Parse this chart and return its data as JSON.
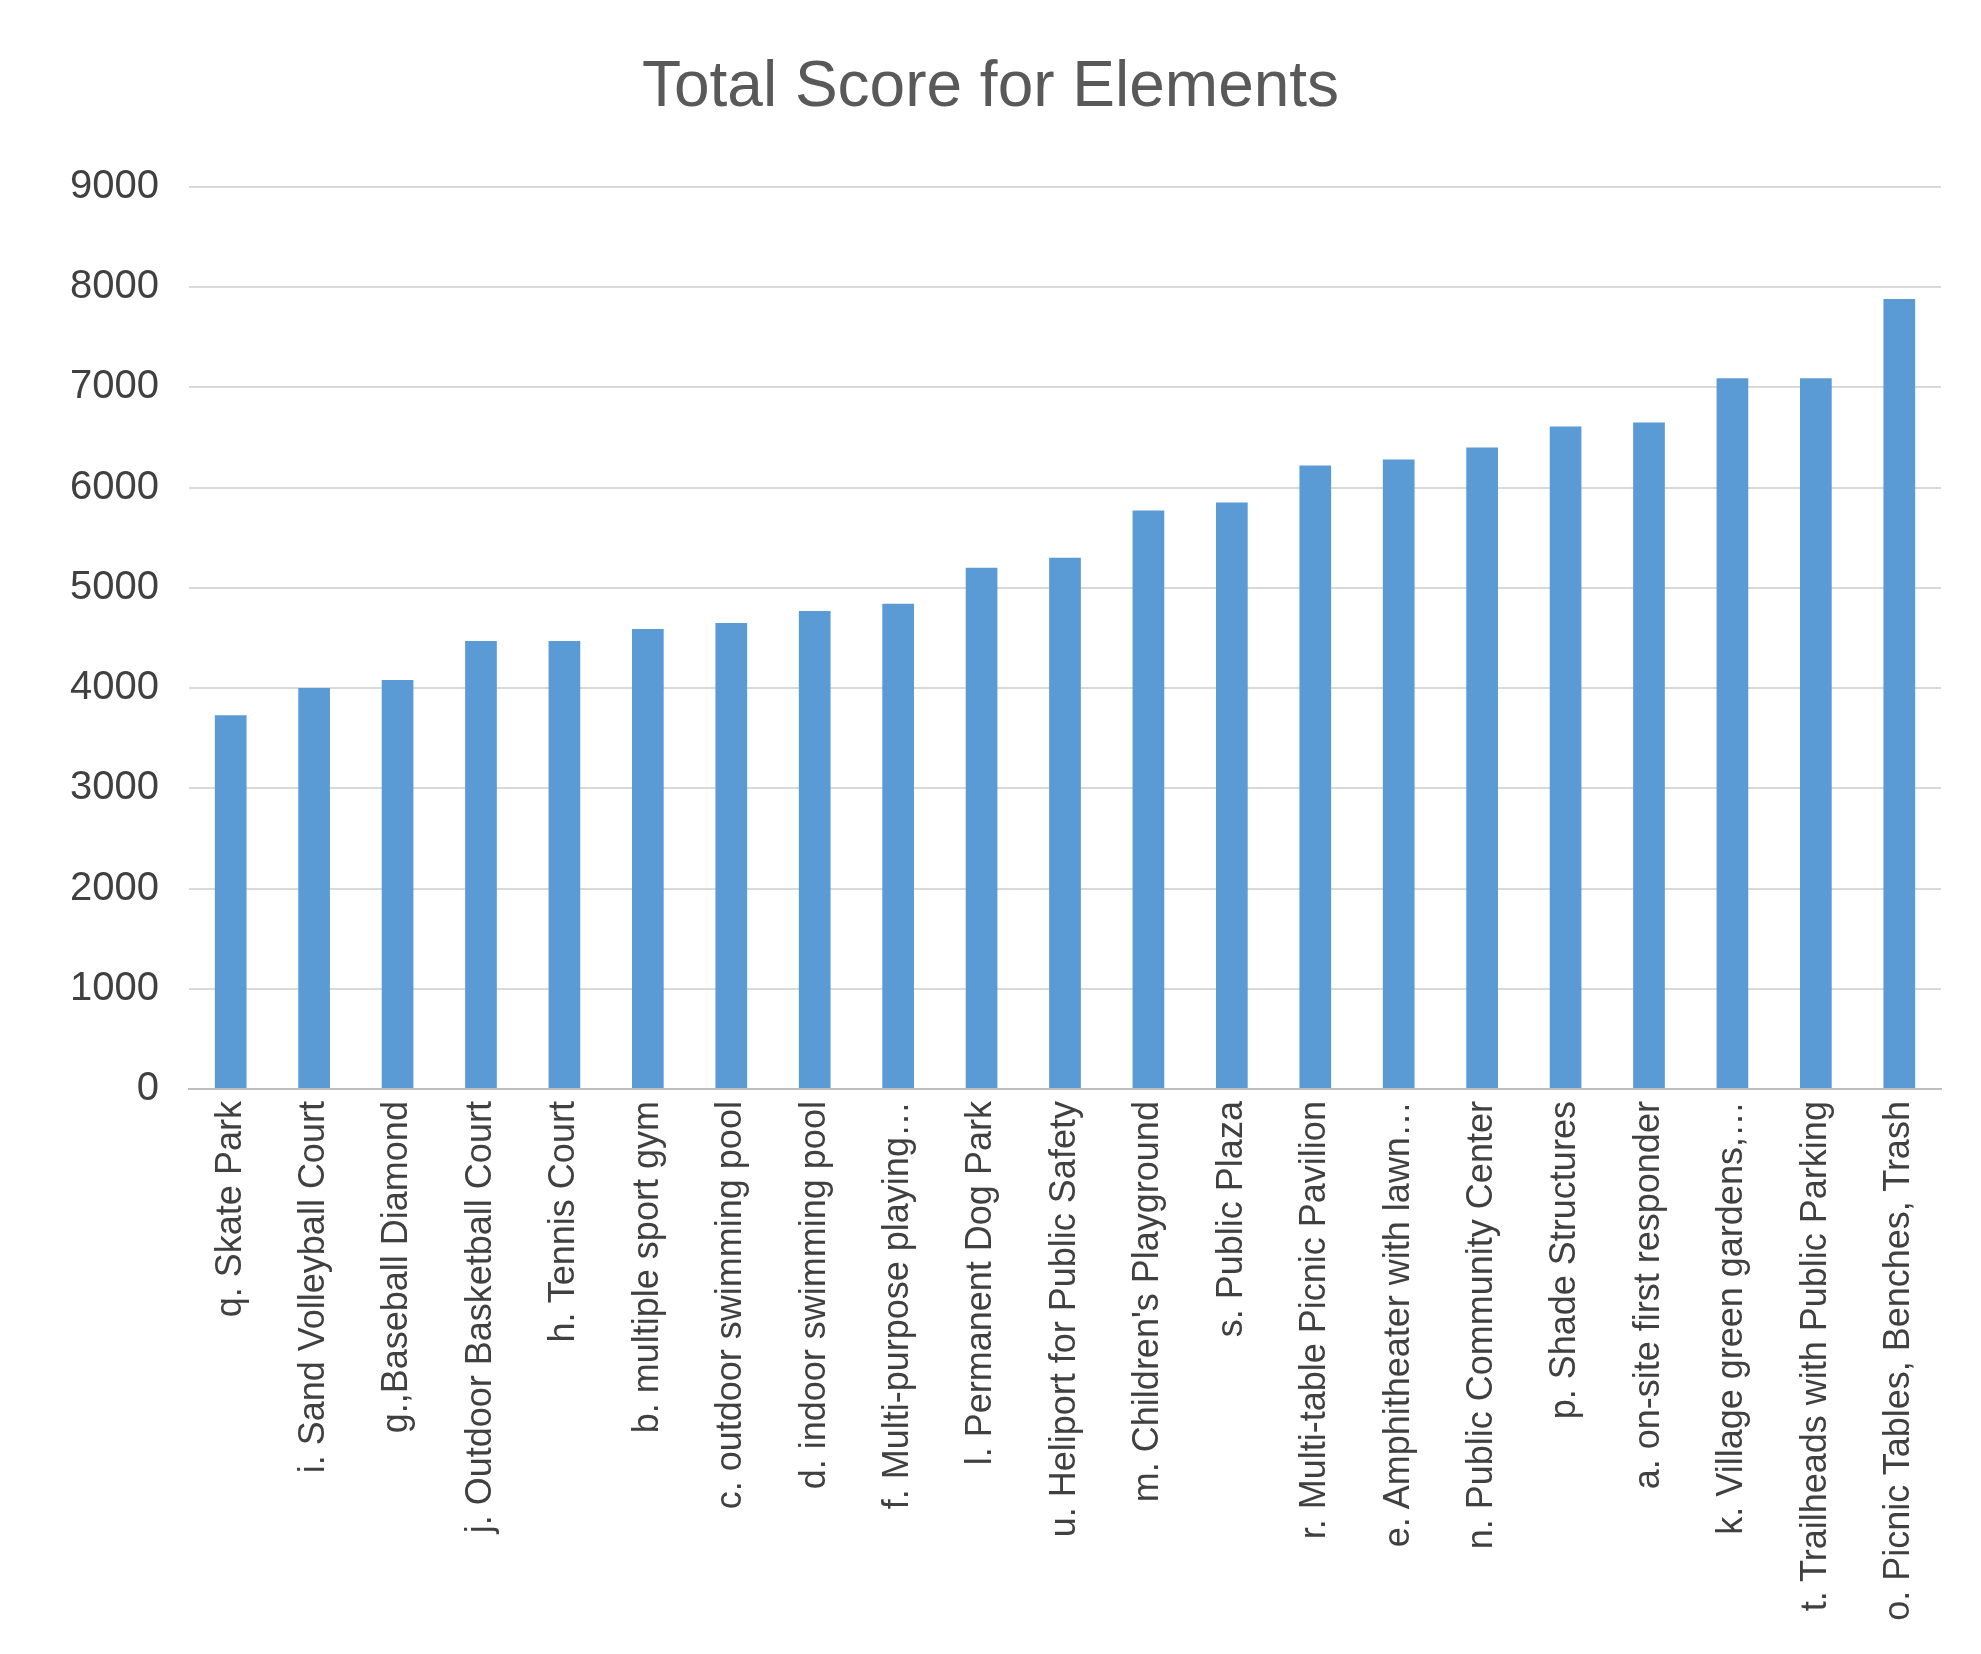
{
  "chart_data": {
    "type": "bar",
    "title": "Total Score for Elements",
    "categories": [
      "q. Skate Park",
      "i. Sand Volleyball Court",
      "g.,Baseball Diamond",
      "j. Outdoor Basketball Court",
      "h. Tennis Court",
      "b. multiple sport gym",
      "c. outdoor swimming pool",
      "d. indoor swimming pool",
      "f. Multi-purpose playing…",
      "l. Permanent Dog Park",
      "u. Heliport for Public Safety",
      "m. Children's Playground",
      "s. Public Plaza",
      "r. Multi-table Picnic Pavilion",
      "e. Amphitheater with lawn…",
      "n. Public Community Center",
      "p. Shade Structures",
      "a. on-site first responder",
      "k. Village green gardens,…",
      "t. Trailheads with Public Parking",
      "o. Picnic Tables, Benches, Trash"
    ],
    "values": [
      3730,
      4000,
      4080,
      4470,
      4470,
      4590,
      4650,
      4770,
      4840,
      5200,
      5300,
      5770,
      5850,
      6220,
      6280,
      6400,
      6610,
      6650,
      7090,
      7090,
      7880
    ],
    "color": "#5b9bd5",
    "ylim": [
      0,
      9000
    ],
    "yticks": [
      0,
      1000,
      2000,
      3000,
      4000,
      5000,
      6000,
      7000,
      8000,
      9000
    ],
    "grid": "y"
  }
}
